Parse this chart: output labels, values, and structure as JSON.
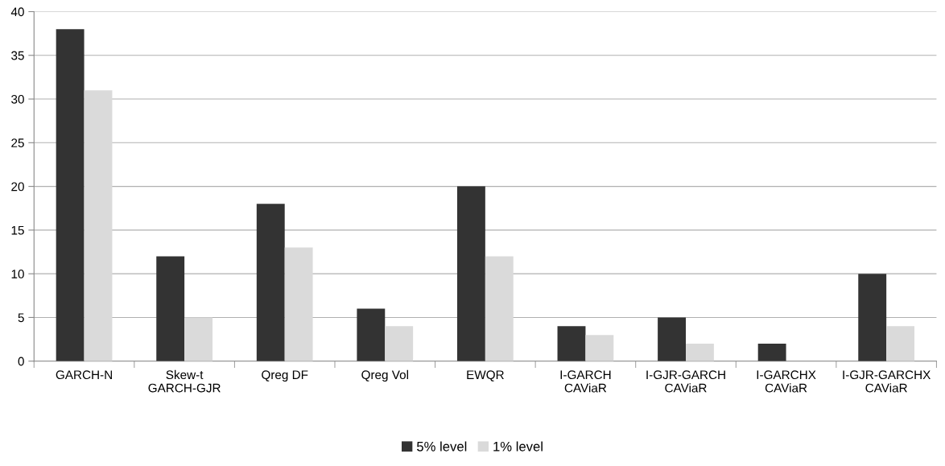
{
  "chart_data": {
    "type": "bar",
    "categories": [
      "GARCH-N",
      "Skew-t\nGARCH-GJR",
      "Qreg DF",
      "Qreg Vol",
      "EWQR",
      "I-GARCH\nCAViaR",
      "I-GJR-GARCH\nCAViaR",
      "I-GARCHX\nCAViaR",
      "I-GJR-GARCHX\nCAViaR"
    ],
    "series": [
      {
        "name": "5% level",
        "color": "#333333",
        "values": [
          38,
          12,
          18,
          6,
          20,
          4,
          5,
          2,
          10
        ]
      },
      {
        "name": "1% level",
        "color": "#dadada",
        "values": [
          31,
          5,
          13,
          4,
          12,
          3,
          2,
          0,
          4
        ]
      }
    ],
    "ylim": [
      0,
      40
    ],
    "yticks": [
      0,
      5,
      10,
      15,
      20,
      25,
      30,
      35,
      40
    ],
    "grid": "y",
    "legend": "bottom"
  }
}
